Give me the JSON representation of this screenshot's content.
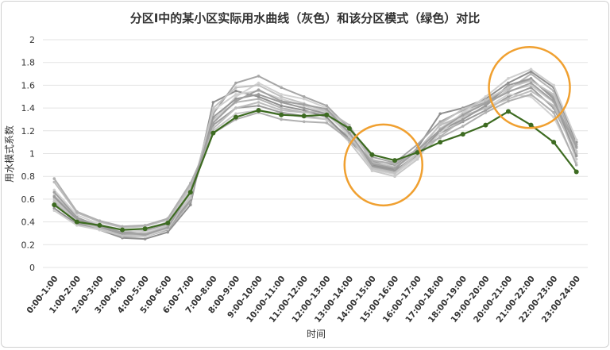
{
  "chart_data": {
    "type": "line",
    "title": "分区I中的某小区实际用水曲线（灰色）和该分区模式（绿色）对比",
    "xlabel": "时间",
    "ylabel": "用水模式系数",
    "ylim": [
      0,
      2
    ],
    "yticks": [
      "0",
      "0.2",
      "0.4",
      "0.6",
      "0.8",
      "1",
      "1.2",
      "1.4",
      "1.6",
      "1.8",
      "2"
    ],
    "grid": true,
    "legend": "none",
    "categories": [
      "0:00-1:00",
      "1:00-2:00",
      "2:00-3:00",
      "3:00-4:00",
      "4:00-5:00",
      "5:00-6:00",
      "6:00-7:00",
      "7:00-8:00",
      "8:00-9:00",
      "9:00-10:00",
      "10:00-11:00",
      "11:00-12:00",
      "12:00-13:00",
      "13:00-14:00",
      "14:00-15:00",
      "15:00-16:00",
      "16:00-17:00",
      "17:00-18:00",
      "18:00-19:00",
      "19:00-20:00",
      "20:00-21:00",
      "21:00-22:00",
      "22:00-23:00",
      "23:00-24:00"
    ],
    "pattern_color": "#3d6b21",
    "actual_color": "#a8a8a8",
    "highlight_color": "#f0a030",
    "series": [
      {
        "role": "pattern",
        "values": [
          0.55,
          0.4,
          0.37,
          0.33,
          0.34,
          0.39,
          0.66,
          1.18,
          1.32,
          1.38,
          1.34,
          1.33,
          1.34,
          1.22,
          0.99,
          0.94,
          1.01,
          1.1,
          1.17,
          1.25,
          1.37,
          1.25,
          1.1,
          0.84
        ]
      },
      {
        "role": "actual",
        "values": [
          0.58,
          0.4,
          0.36,
          0.31,
          0.32,
          0.38,
          0.62,
          1.25,
          1.4,
          1.42,
          1.36,
          1.33,
          1.3,
          1.14,
          0.93,
          0.9,
          1.02,
          1.18,
          1.28,
          1.38,
          1.5,
          1.58,
          1.4,
          1.0
        ]
      },
      {
        "role": "actual",
        "values": [
          0.63,
          0.43,
          0.35,
          0.3,
          0.3,
          0.36,
          0.65,
          1.3,
          1.45,
          1.48,
          1.4,
          1.36,
          1.35,
          1.18,
          0.88,
          0.84,
          0.98,
          1.15,
          1.3,
          1.42,
          1.56,
          1.7,
          1.55,
          1.05
        ]
      },
      {
        "role": "actual",
        "values": [
          0.6,
          0.42,
          0.38,
          0.32,
          0.33,
          0.4,
          0.7,
          1.2,
          1.35,
          1.38,
          1.35,
          1.32,
          1.3,
          1.1,
          0.85,
          0.8,
          0.95,
          1.22,
          1.35,
          1.45,
          1.55,
          1.6,
          1.45,
          0.95
        ]
      },
      {
        "role": "actual",
        "values": [
          0.52,
          0.38,
          0.33,
          0.26,
          0.25,
          0.31,
          0.55,
          1.45,
          1.55,
          1.5,
          1.42,
          1.38,
          1.32,
          1.12,
          0.9,
          0.86,
          1.05,
          1.35,
          1.4,
          1.48,
          1.62,
          1.72,
          1.58,
          1.1
        ]
      },
      {
        "role": "actual",
        "values": [
          0.68,
          0.46,
          0.38,
          0.33,
          0.31,
          0.37,
          0.68,
          1.28,
          1.5,
          1.62,
          1.52,
          1.48,
          1.4,
          1.2,
          0.95,
          0.88,
          1.0,
          1.2,
          1.32,
          1.4,
          1.52,
          1.5,
          1.32,
          0.92
        ]
      },
      {
        "role": "actual",
        "values": [
          0.56,
          0.39,
          0.34,
          0.27,
          0.27,
          0.33,
          0.58,
          1.35,
          1.62,
          1.68,
          1.58,
          1.5,
          1.42,
          1.22,
          0.97,
          0.92,
          1.08,
          1.28,
          1.38,
          1.45,
          1.58,
          1.65,
          1.5,
          1.08
        ]
      },
      {
        "role": "actual",
        "values": [
          0.75,
          0.48,
          0.4,
          0.35,
          0.36,
          0.42,
          0.72,
          1.22,
          1.4,
          1.45,
          1.38,
          1.36,
          1.38,
          1.25,
          0.92,
          0.88,
          1.03,
          1.25,
          1.33,
          1.4,
          1.48,
          1.55,
          1.42,
          1.0
        ]
      },
      {
        "role": "actual",
        "values": [
          0.62,
          0.42,
          0.36,
          0.29,
          0.28,
          0.35,
          0.6,
          1.32,
          1.48,
          1.52,
          1.45,
          1.4,
          1.35,
          1.16,
          0.89,
          0.85,
          0.99,
          1.2,
          1.3,
          1.42,
          1.6,
          1.66,
          1.48,
          0.98
        ]
      },
      {
        "role": "actual",
        "values": [
          0.5,
          0.37,
          0.33,
          0.28,
          0.27,
          0.34,
          0.64,
          1.38,
          1.52,
          1.55,
          1.48,
          1.42,
          1.36,
          1.15,
          0.86,
          0.82,
          0.97,
          1.18,
          1.36,
          1.5,
          1.66,
          1.74,
          1.6,
          1.12
        ]
      },
      {
        "role": "actual",
        "values": [
          0.78,
          0.49,
          0.41,
          0.36,
          0.37,
          0.43,
          0.74,
          1.18,
          1.3,
          1.36,
          1.3,
          1.28,
          1.27,
          1.12,
          0.94,
          0.91,
          1.04,
          1.14,
          1.24,
          1.36,
          1.46,
          1.52,
          1.36,
          0.9
        ]
      },
      {
        "role": "actual",
        "values": [
          0.58,
          0.41,
          0.34,
          0.28,
          0.29,
          0.37,
          0.61,
          1.4,
          1.58,
          1.6,
          1.5,
          1.44,
          1.37,
          1.17,
          0.87,
          0.83,
          1.0,
          1.26,
          1.39,
          1.47,
          1.58,
          1.64,
          1.52,
          1.02
        ]
      },
      {
        "role": "actual",
        "values": [
          0.66,
          0.44,
          0.36,
          0.3,
          0.29,
          0.35,
          0.67,
          1.27,
          1.46,
          1.56,
          1.46,
          1.43,
          1.39,
          1.18,
          0.91,
          0.87,
          1.03,
          1.21,
          1.34,
          1.44,
          1.54,
          1.62,
          1.46,
          1.06
        ]
      }
    ]
  }
}
